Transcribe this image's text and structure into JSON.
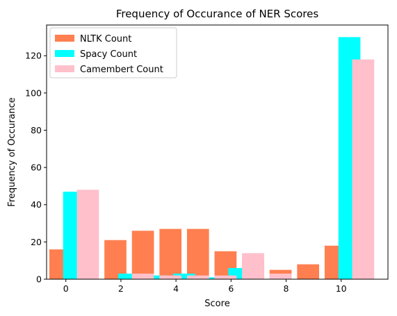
{
  "chart_data": {
    "type": "bar",
    "title": "Frequency of Occurance of NER Scores",
    "xlabel": "Score",
    "ylabel": "Frequency of Occurance",
    "xlim": [
      -0.7,
      11.7
    ],
    "ylim": [
      0,
      136.5
    ],
    "xticks": [
      0,
      2,
      4,
      6,
      8,
      10
    ],
    "yticks": [
      0,
      20,
      40,
      60,
      80,
      100,
      120
    ],
    "legend_position": "top-left",
    "series": [
      {
        "name": "NLTK Count",
        "color": "#ff7f50",
        "offset": -0.2,
        "width": 0.8,
        "x": [
          0,
          2,
          3,
          4,
          5,
          6,
          7,
          8,
          9,
          10
        ],
        "values": [
          16,
          21,
          26,
          27,
          27,
          15,
          11,
          5,
          8,
          18
        ]
      },
      {
        "name": "Spacy Count",
        "color": "#00ffff",
        "offset": 0.3,
        "width": 0.8,
        "x": [
          0,
          2,
          3,
          4,
          5,
          6,
          10
        ],
        "values": [
          47,
          3,
          2,
          3,
          1,
          6,
          130
        ]
      },
      {
        "name": "Camembert Count",
        "color": "#ffc0cb",
        "offset": 0.8,
        "width": 0.8,
        "x": [
          0,
          2,
          3,
          4,
          5,
          6,
          7,
          10
        ],
        "values": [
          48,
          3,
          2,
          2,
          2,
          14,
          3,
          118
        ]
      }
    ]
  }
}
